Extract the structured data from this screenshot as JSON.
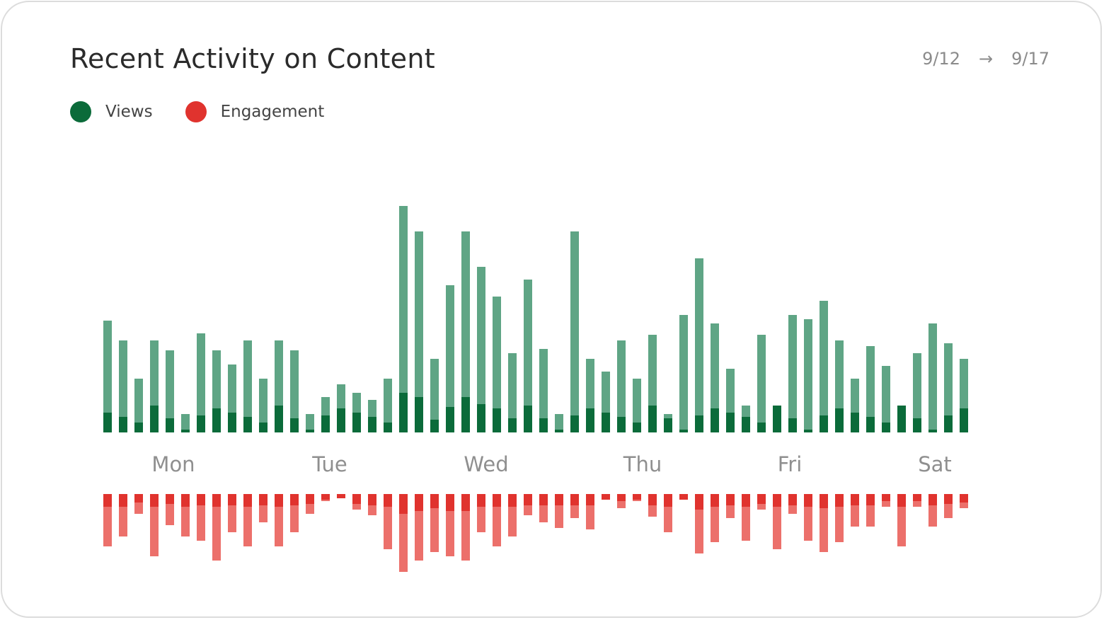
{
  "header": {
    "title": "Recent Activity on Content",
    "date_start": "9/12",
    "date_arrow": "→",
    "date_end": "9/17"
  },
  "legend": [
    {
      "label": "Views",
      "color": "#0b6b3a"
    },
    {
      "label": "Engagement",
      "color": "#e0332e"
    }
  ],
  "colors": {
    "views_light": "#5fa585",
    "views_dark": "#0b6b3a",
    "engagement_light": "#ec706b",
    "engagement_dark": "#e0332e"
  },
  "chart_data": {
    "type": "bar",
    "x_labels": [
      "Mon",
      "Tue",
      "Wed",
      "Thu",
      "Fri",
      "Sat"
    ],
    "series": [
      {
        "name": "Views",
        "values": [
          158,
          130,
          76,
          130,
          116,
          26,
          140,
          116,
          96,
          130,
          76,
          130,
          116,
          26,
          50,
          68,
          56,
          46,
          76,
          320,
          284,
          104,
          208,
          284,
          234,
          192,
          112,
          216,
          118,
          26,
          284,
          104,
          86,
          130,
          76,
          138,
          26,
          166,
          246,
          154,
          90,
          38,
          138,
          26,
          166,
          160,
          186,
          130,
          76,
          122,
          94,
          26,
          112,
          154,
          126,
          104
        ],
        "emphasis": [
          28,
          22,
          14,
          38,
          20,
          4,
          24,
          34,
          28,
          22,
          14,
          38,
          20,
          4,
          24,
          34,
          28,
          22,
          14,
          56,
          50,
          18,
          36,
          50,
          40,
          34,
          20,
          38,
          20,
          4,
          24,
          34,
          28,
          22,
          14,
          38,
          20,
          4,
          24,
          34,
          28,
          22,
          14,
          38,
          20,
          4,
          24,
          34,
          28,
          22,
          14,
          38,
          20,
          4,
          24,
          34
        ]
      },
      {
        "name": "Engagement",
        "values": [
          74,
          60,
          28,
          88,
          44,
          60,
          66,
          94,
          54,
          74,
          40,
          74,
          54,
          28,
          10,
          6,
          22,
          30,
          78,
          110,
          94,
          82,
          88,
          94,
          54,
          74,
          60,
          30,
          40,
          48,
          34,
          50,
          8,
          20,
          10,
          32,
          54,
          8,
          84,
          68,
          34,
          66,
          22,
          78,
          28,
          66,
          82,
          68,
          46,
          46,
          18,
          74,
          18,
          46,
          34,
          20
        ],
        "emphasis": [
          18,
          18,
          12,
          18,
          14,
          18,
          16,
          18,
          16,
          18,
          16,
          18,
          16,
          14,
          8,
          6,
          14,
          16,
          18,
          28,
          24,
          20,
          24,
          24,
          18,
          18,
          18,
          16,
          16,
          16,
          16,
          16,
          8,
          10,
          8,
          16,
          18,
          8,
          22,
          18,
          16,
          18,
          14,
          18,
          16,
          18,
          20,
          18,
          16,
          16,
          10,
          18,
          10,
          16,
          14,
          12
        ]
      }
    ]
  }
}
